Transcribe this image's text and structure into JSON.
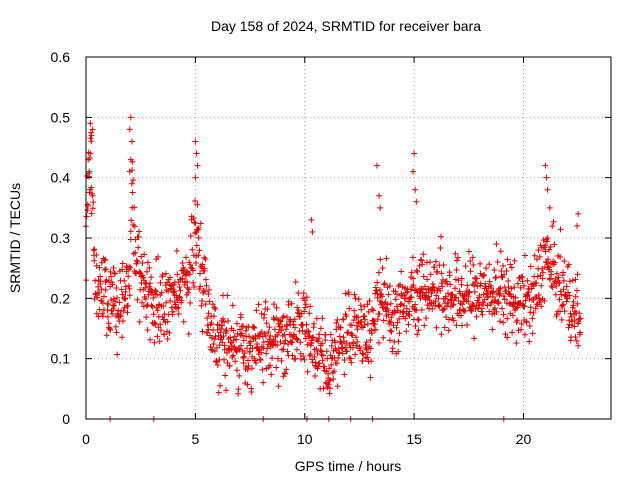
{
  "chart_data": {
    "type": "scatter",
    "title": "Day 158 of 2024, SRMTID for receiver bara",
    "xlabel": "GPS time / hours",
    "ylabel": "SRMTID / TECUs",
    "xlim": [
      0,
      24
    ],
    "ylim": [
      0,
      0.6
    ],
    "x_ticks": [
      0,
      5,
      10,
      15,
      20
    ],
    "x_tick_labels": [
      "0",
      "5",
      "10",
      "15",
      "20"
    ],
    "y_ticks": [
      0,
      0.1,
      0.2,
      0.3,
      0.4,
      0.5,
      0.6
    ],
    "y_tick_labels": [
      "0",
      "0.1",
      "0.2",
      "0.3",
      "0.4",
      "0.5",
      "0.6"
    ],
    "grid": true,
    "marker": "plus",
    "color": "#e00000",
    "x_start": 0.0,
    "x_end": 22.6,
    "n_points": 1450,
    "trend": [
      [
        0.0,
        0.3
      ],
      [
        0.1,
        0.4
      ],
      [
        0.25,
        0.43
      ],
      [
        0.4,
        0.22
      ],
      [
        1.0,
        0.2
      ],
      [
        1.5,
        0.19
      ],
      [
        2.0,
        0.22
      ],
      [
        2.1,
        0.38
      ],
      [
        2.3,
        0.24
      ],
      [
        3.0,
        0.2
      ],
      [
        3.5,
        0.18
      ],
      [
        4.0,
        0.2
      ],
      [
        4.7,
        0.24
      ],
      [
        5.0,
        0.3
      ],
      [
        5.3,
        0.25
      ],
      [
        5.6,
        0.17
      ],
      [
        6.0,
        0.13
      ],
      [
        7.0,
        0.12
      ],
      [
        8.0,
        0.12
      ],
      [
        9.0,
        0.13
      ],
      [
        10.0,
        0.16
      ],
      [
        10.5,
        0.12
      ],
      [
        11.0,
        0.08
      ],
      [
        11.5,
        0.12
      ],
      [
        12.0,
        0.15
      ],
      [
        13.0,
        0.14
      ],
      [
        13.5,
        0.2
      ],
      [
        14.0,
        0.17
      ],
      [
        14.5,
        0.18
      ],
      [
        15.0,
        0.22
      ],
      [
        15.5,
        0.21
      ],
      [
        16.0,
        0.22
      ],
      [
        17.0,
        0.2
      ],
      [
        18.0,
        0.21
      ],
      [
        19.0,
        0.21
      ],
      [
        19.5,
        0.2
      ],
      [
        20.0,
        0.19
      ],
      [
        20.5,
        0.2
      ],
      [
        21.0,
        0.27
      ],
      [
        21.5,
        0.23
      ],
      [
        22.0,
        0.2
      ],
      [
        22.6,
        0.16
      ]
    ],
    "spikes": [
      [
        0.2,
        0.49
      ],
      [
        0.25,
        0.47
      ],
      [
        0.3,
        0.48
      ],
      [
        0.2,
        0.44
      ],
      [
        0.1,
        0.43
      ],
      [
        0.15,
        0.41
      ],
      [
        2.05,
        0.5
      ],
      [
        2.0,
        0.48
      ],
      [
        2.1,
        0.46
      ],
      [
        2.05,
        0.43
      ],
      [
        2.0,
        0.41
      ],
      [
        2.1,
        0.39
      ],
      [
        5.0,
        0.46
      ],
      [
        5.05,
        0.44
      ],
      [
        5.1,
        0.42
      ],
      [
        5.0,
        0.4
      ],
      [
        13.3,
        0.42
      ],
      [
        13.4,
        0.37
      ],
      [
        13.45,
        0.35
      ],
      [
        15.0,
        0.44
      ],
      [
        14.95,
        0.41
      ],
      [
        15.05,
        0.38
      ],
      [
        15.1,
        0.36
      ],
      [
        21.0,
        0.42
      ],
      [
        21.05,
        0.4
      ],
      [
        21.1,
        0.38
      ],
      [
        21.2,
        0.35
      ],
      [
        10.3,
        0.33
      ],
      [
        10.35,
        0.31
      ],
      [
        22.5,
        0.34
      ],
      [
        22.45,
        0.32
      ]
    ],
    "zero_points": [
      1.1,
      3.1,
      8.1,
      10.1,
      11.1,
      12.1,
      13.1,
      19.1
    ]
  }
}
